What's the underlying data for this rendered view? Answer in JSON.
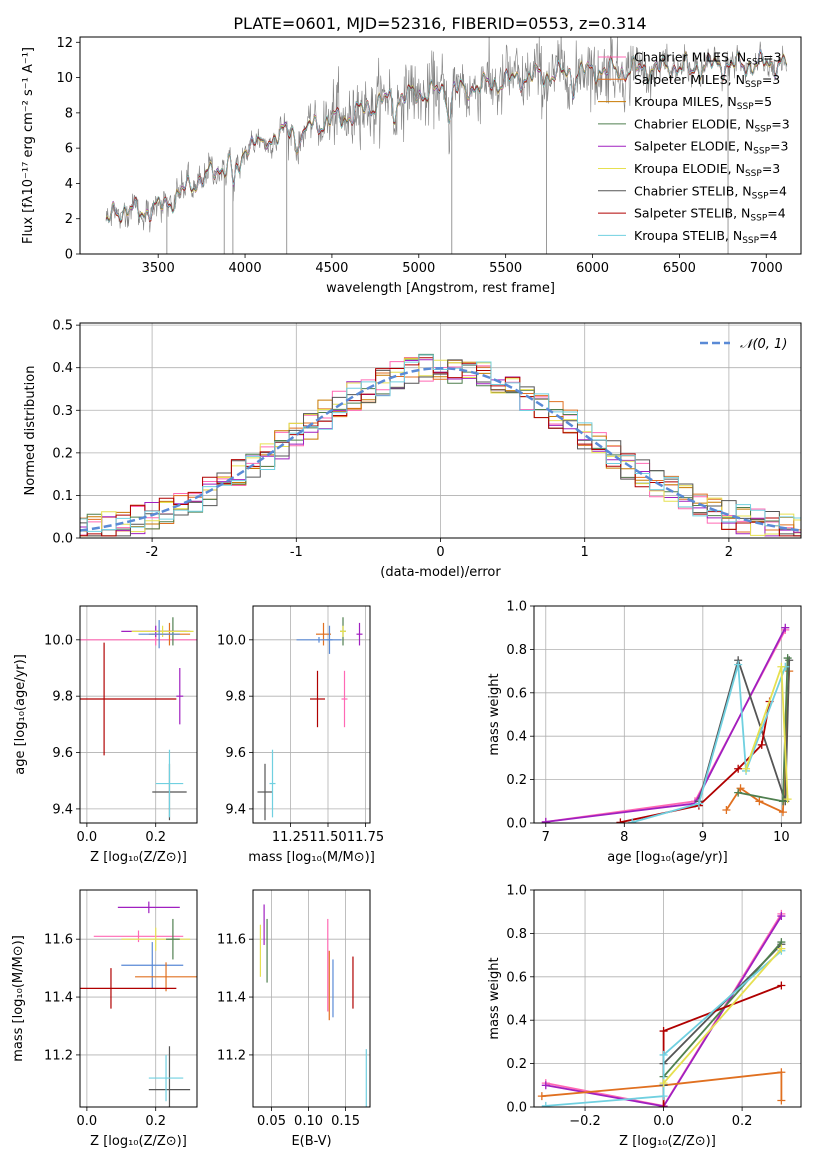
{
  "title": "PLATE=0601, MJD=52316, FIBERID=0553, z=0.314",
  "colors": {
    "Chabrier MILES": "#ff69b4",
    "Salpeter MILES": "#e07020",
    "Kroupa MILES": "#c87800",
    "Chabrier ELODIE": "#4f7f4f",
    "Salpeter ELODIE": "#a020c0",
    "Kroupa ELODIE": "#e6e050",
    "Chabrier STELIB": "#555555",
    "Salpeter STELIB": "#b00000",
    "Kroupa STELIB": "#70d0e0",
    "data": "#808080",
    "gauss": "#5a8ad6"
  },
  "chart_data": [
    {
      "id": "spectrum",
      "type": "line",
      "xlabel": "wavelength [Angstrom, rest frame]",
      "ylabel": "Flux [fλ10⁻¹⁷ erg cm⁻² s⁻¹ A⁻¹]",
      "xlim": [
        3050,
        7200
      ],
      "ylim": [
        0,
        12.3
      ],
      "xticks": [
        3500,
        4000,
        4500,
        5000,
        5500,
        6000,
        6500,
        7000
      ],
      "yticks": [
        0,
        2,
        4,
        6,
        8,
        10,
        12
      ],
      "legend_position": "upper-right",
      "legend": [
        {
          "label": "Chabrier MILES, N",
          "sub": "SSP",
          "suffix": "=3",
          "color": "#ff69b4"
        },
        {
          "label": "Salpeter MILES, N",
          "sub": "SSP",
          "suffix": "=3",
          "color": "#e07020"
        },
        {
          "label": "Kroupa MILES, N",
          "sub": "SSP",
          "suffix": "=5",
          "color": "#c87800"
        },
        {
          "label": "Chabrier ELODIE, N",
          "sub": "SSP",
          "suffix": "=3",
          "color": "#4f7f4f"
        },
        {
          "label": "Salpeter ELODIE, N",
          "sub": "SSP",
          "suffix": "=3",
          "color": "#a020c0"
        },
        {
          "label": "Kroupa ELODIE, N",
          "sub": "SSP",
          "suffix": "=3",
          "color": "#e6e050"
        },
        {
          "label": "Chabrier STELIB, N",
          "sub": "SSP",
          "suffix": "=4",
          "color": "#555555"
        },
        {
          "label": "Salpeter STELIB, N",
          "sub": "SSP",
          "suffix": "=4",
          "color": "#b00000"
        },
        {
          "label": "Kroupa STELIB, N",
          "sub": "SSP",
          "suffix": "=4",
          "color": "#70d0e0"
        }
      ],
      "continuum": [
        [
          3200,
          1.6
        ],
        [
          3250,
          2.5
        ],
        [
          3400,
          2.4
        ],
        [
          3500,
          2.6
        ],
        [
          3600,
          3.2
        ],
        [
          3700,
          4.0
        ],
        [
          3800,
          4.5
        ],
        [
          3880,
          5.0
        ],
        [
          3950,
          5.6
        ],
        [
          4000,
          6.2
        ],
        [
          4100,
          6.4
        ],
        [
          4200,
          6.8
        ],
        [
          4300,
          7.0
        ],
        [
          4400,
          7.3
        ],
        [
          4500,
          7.6
        ],
        [
          4600,
          7.8
        ],
        [
          4700,
          8.3
        ],
        [
          4800,
          8.7
        ],
        [
          4900,
          8.9
        ],
        [
          5000,
          9.1
        ],
        [
          5100,
          9.2
        ],
        [
          5200,
          9.3
        ],
        [
          5300,
          9.5
        ],
        [
          5400,
          9.6
        ],
        [
          5500,
          9.8
        ],
        [
          5600,
          10.0
        ],
        [
          5700,
          10.1
        ],
        [
          5800,
          10.2
        ],
        [
          5900,
          10.3
        ],
        [
          6000,
          10.4
        ],
        [
          6100,
          10.4
        ],
        [
          6200,
          10.4
        ],
        [
          6300,
          10.5
        ],
        [
          6400,
          10.5
        ],
        [
          6500,
          10.6
        ],
        [
          6600,
          10.6
        ],
        [
          6700,
          10.7
        ],
        [
          6800,
          10.7
        ],
        [
          6900,
          10.7
        ],
        [
          7000,
          10.8
        ],
        [
          7100,
          10.8
        ]
      ],
      "absorption_features": [
        [
          3934,
          2.0
        ],
        [
          3969,
          1.6
        ],
        [
          4102,
          0.6
        ],
        [
          4300,
          1.0
        ],
        [
          4340,
          0.6
        ],
        [
          4861,
          0.9
        ],
        [
          5175,
          1.5
        ],
        [
          5270,
          0.5
        ],
        [
          5890,
          0.8
        ],
        [
          6563,
          0.4
        ]
      ],
      "spikes": [
        3550,
        3880,
        3930,
        4240,
        5190,
        5735,
        6780
      ]
    },
    {
      "id": "residuals",
      "type": "histogram",
      "xlabel": "(data-model)/error",
      "ylabel": "Normed distribution",
      "xlim": [
        -2.5,
        2.5
      ],
      "ylim": [
        0,
        0.505
      ],
      "xticks": [
        -2,
        -1,
        0,
        1,
        2
      ],
      "yticks": [
        0.0,
        0.1,
        0.2,
        0.3,
        0.4,
        0.5
      ],
      "bin_width": 0.1,
      "legend": [
        {
          "label": "𝒩(0, 1)",
          "color": "#5a8ad6",
          "style": "dashed"
        }
      ],
      "gaussian": {
        "mean": 0,
        "sigma": 1
      }
    },
    {
      "id": "age_vs_Z",
      "type": "errorbar",
      "xlabel": "Z [log₁₀(Z/Z⊙)]",
      "ylabel": "age  [log₁₀(age/yr)]",
      "xlim": [
        -0.02,
        0.32
      ],
      "ylim": [
        9.35,
        10.12
      ],
      "xticks": [
        0.0,
        0.2
      ],
      "xticklabels": [
        "0.0",
        "0.2"
      ],
      "yticks": [
        9.4,
        9.6,
        9.8,
        10.0
      ],
      "yticklabels": [
        "9.4",
        "9.6",
        "9.8",
        "10.0"
      ],
      "points": [
        {
          "c": "#ff69b4",
          "x": 0.2,
          "xe": 0.22,
          "y": 10.0,
          "ye": 0.02
        },
        {
          "c": "#e07020",
          "x": 0.24,
          "xe": 0.06,
          "y": 10.02,
          "ye": 0.04
        },
        {
          "c": "#4f7f4f",
          "x": 0.25,
          "xe": 0.04,
          "y": 10.03,
          "ye": 0.05
        },
        {
          "c": "#a020c0",
          "x": 0.2,
          "xe": 0.1,
          "y": 10.03,
          "ye": 0.02
        },
        {
          "c": "#e6e050",
          "x": 0.22,
          "xe": 0.09,
          "y": 10.03,
          "ye": 0.02
        },
        {
          "c": "#5a8ad6",
          "x": 0.21,
          "xe": 0.06,
          "y": 10.02,
          "ye": 0.05
        },
        {
          "c": "#b00000",
          "x": 0.05,
          "xe": 0.21,
          "y": 9.79,
          "ye": 0.2
        },
        {
          "c": "#555555",
          "x": 0.24,
          "xe": 0.05,
          "y": 9.46,
          "ye": 0.1
        },
        {
          "c": "#70d0e0",
          "x": 0.24,
          "xe": 0.04,
          "y": 9.49,
          "ye": 0.12
        },
        {
          "c": "#a020c0",
          "x": 0.27,
          "xe": 0.01,
          "y": 9.8,
          "ye": 0.1
        }
      ]
    },
    {
      "id": "age_vs_mass",
      "type": "errorbar",
      "xlabel": "mass [log₁₀(M/M⊙)]",
      "xlim": [
        11.0,
        11.78
      ],
      "ylim": [
        9.35,
        10.12
      ],
      "xticks": [
        11.25,
        11.5,
        11.75
      ],
      "xticklabels": [
        "11.25",
        "11.50",
        "11.75"
      ],
      "yticks": [
        9.4,
        9.6,
        9.8,
        10.0
      ],
      "yticklabels": [
        "9.4",
        "9.6",
        "9.8",
        "10.0"
      ],
      "points": [
        {
          "c": "#ff69b4",
          "x": 11.61,
          "xe": 0.02,
          "y": 9.79,
          "ye": 0.1
        },
        {
          "c": "#e07020",
          "x": 11.47,
          "xe": 0.05,
          "y": 10.02,
          "ye": 0.04
        },
        {
          "c": "#4f7f4f",
          "x": 11.6,
          "xe": 0.02,
          "y": 10.03,
          "ye": 0.05
        },
        {
          "c": "#a020c0",
          "x": 11.71,
          "xe": 0.02,
          "y": 10.02,
          "ye": 0.04
        },
        {
          "c": "#e6e050",
          "x": 11.6,
          "xe": 0.02,
          "y": 10.03,
          "ye": 0.02
        },
        {
          "c": "#5a8ad6",
          "x": 11.51,
          "xe": 0.02,
          "y": 10.0,
          "ye": 0.05
        },
        {
          "c": "#555555",
          "x": 11.08,
          "xe": 0.05,
          "y": 9.46,
          "ye": 0.1
        },
        {
          "c": "#70d0e0",
          "x": 11.13,
          "xe": 0.02,
          "y": 9.49,
          "ye": 0.12
        },
        {
          "c": "#b00000",
          "x": 11.43,
          "xe": 0.05,
          "y": 9.79,
          "ye": 0.1
        },
        {
          "c": "#5a8ad6",
          "x": 11.44,
          "xe": 0.15,
          "y": 10.0,
          "ye": 0.01
        }
      ]
    },
    {
      "id": "mass_weight_vs_age",
      "type": "line",
      "xlabel": "age  [log₁₀(age/yr)]",
      "ylabel": "mass weight",
      "xlim": [
        6.85,
        10.25
      ],
      "ylim": [
        0,
        1.0
      ],
      "xticks": [
        7,
        8,
        9,
        10
      ],
      "xticklabels": [
        "7",
        "8",
        "9",
        "10"
      ],
      "yticks": [
        0.0,
        0.2,
        0.4,
        0.6,
        0.8,
        1.0
      ],
      "yticklabels": [
        "0.0",
        "0.2",
        "0.4",
        "0.6",
        "0.8",
        "1.0"
      ],
      "series": [
        {
          "c": "#ff69b4",
          "x": [
            7.0,
            8.9,
            10.05
          ],
          "y": [
            0.005,
            0.1,
            0.89
          ]
        },
        {
          "c": "#a020c0",
          "x": [
            7.0,
            8.9,
            10.05
          ],
          "y": [
            0.005,
            0.09,
            0.9
          ]
        },
        {
          "c": "#e07020",
          "x": [
            9.3,
            9.48,
            9.72,
            10.02,
            10.1
          ],
          "y": [
            0.06,
            0.16,
            0.1,
            0.05,
            0.7
          ]
        },
        {
          "c": "#555555",
          "x": [
            8.95,
            9.45,
            10.05,
            10.1
          ],
          "y": [
            0.1,
            0.75,
            0.1,
            0.75
          ]
        },
        {
          "c": "#4f7f4f",
          "x": [
            9.45,
            10.02,
            10.08
          ],
          "y": [
            0.14,
            0.1,
            0.76
          ]
        },
        {
          "c": "#b00000",
          "x": [
            7.95,
            8.95,
            9.45,
            9.75,
            9.85
          ],
          "y": [
            0.003,
            0.08,
            0.25,
            0.36,
            0.56
          ]
        },
        {
          "c": "#70d0e0",
          "x": [
            8.1,
            8.95,
            9.45,
            9.55,
            10.05
          ],
          "y": [
            0.003,
            0.09,
            0.73,
            0.24,
            0.72
          ]
        },
        {
          "c": "#e6e050",
          "x": [
            9.55,
            10.0,
            10.08
          ],
          "y": [
            0.25,
            0.72,
            0.11
          ]
        }
      ]
    },
    {
      "id": "mass_vs_Z",
      "type": "errorbar",
      "xlabel": "Z [log₁₀(Z/Z⊙)]",
      "ylabel": "mass [log₁₀(M/M⊙)]",
      "xlim": [
        -0.02,
        0.32
      ],
      "ylim": [
        11.02,
        11.77
      ],
      "xticks": [
        0.0,
        0.2
      ],
      "xticklabels": [
        "0.0",
        "0.2"
      ],
      "yticks": [
        11.2,
        11.4,
        11.6
      ],
      "yticklabels": [
        "11.2",
        "11.4",
        "11.6"
      ],
      "points": [
        {
          "c": "#ff69b4",
          "x": 0.15,
          "xe": 0.13,
          "y": 11.61,
          "ye": 0.02
        },
        {
          "c": "#a020c0",
          "x": 0.18,
          "xe": 0.09,
          "y": 11.71,
          "ye": 0.02
        },
        {
          "c": "#e6e050",
          "x": 0.2,
          "xe": 0.1,
          "y": 11.6,
          "ye": 0.04
        },
        {
          "c": "#4f7f4f",
          "x": 0.25,
          "xe": 0.02,
          "y": 11.6,
          "ye": 0.07
        },
        {
          "c": "#5a8ad6",
          "x": 0.19,
          "xe": 0.09,
          "y": 11.51,
          "ye": 0.08
        },
        {
          "c": "#e07020",
          "x": 0.23,
          "xe": 0.09,
          "y": 11.47,
          "ye": 0.05
        },
        {
          "c": "#b00000",
          "x": 0.07,
          "xe": 0.19,
          "y": 11.43,
          "ye": 0.07
        },
        {
          "c": "#555555",
          "x": 0.24,
          "xe": 0.06,
          "y": 11.08,
          "ye": 0.15
        },
        {
          "c": "#70d0e0",
          "x": 0.23,
          "xe": 0.05,
          "y": 11.12,
          "ye": 0.08
        }
      ]
    },
    {
      "id": "mass_vs_ebv",
      "type": "errorbar",
      "xlabel": "E(B-V)",
      "xlim": [
        0.025,
        0.183
      ],
      "ylim": [
        11.02,
        11.77
      ],
      "xticks": [
        0.05,
        0.1,
        0.15
      ],
      "xticklabels": [
        "0.05",
        "0.10",
        "0.15"
      ],
      "yticks": [
        11.2,
        11.4,
        11.6
      ],
      "yticklabels": [
        "11.2",
        "11.4",
        "11.6"
      ],
      "points": [
        {
          "c": "#a020c0",
          "x": 0.04,
          "xe": 0.0,
          "y": 11.65,
          "ye": 0.07
        },
        {
          "c": "#e6e050",
          "x": 0.035,
          "xe": 0.0,
          "y": 11.56,
          "ye": 0.09
        },
        {
          "c": "#4f7f4f",
          "x": 0.044,
          "xe": 0.0,
          "y": 11.56,
          "ye": 0.11
        },
        {
          "c": "#ff69b4",
          "x": 0.126,
          "xe": 0.0,
          "y": 11.51,
          "ye": 0.16
        },
        {
          "c": "#e07020",
          "x": 0.128,
          "xe": 0.0,
          "y": 11.44,
          "ye": 0.12
        },
        {
          "c": "#5a8ad6",
          "x": 0.133,
          "xe": 0.0,
          "y": 11.43,
          "ye": 0.1
        },
        {
          "c": "#b00000",
          "x": 0.16,
          "xe": 0.0,
          "y": 11.45,
          "ye": 0.09
        },
        {
          "c": "#70d0e0",
          "x": 0.178,
          "xe": 0.0,
          "y": 11.12,
          "ye": 0.1
        }
      ]
    },
    {
      "id": "mass_weight_vs_Z",
      "type": "line",
      "xlabel": "Z [log₁₀(Z/Z⊙)]",
      "ylabel": "mass weight",
      "xlim": [
        -0.33,
        0.35
      ],
      "ylim": [
        0,
        1.0
      ],
      "xticks": [
        -0.2,
        0.0,
        0.2
      ],
      "xticklabels": [
        "−0.2",
        "0.0",
        "0.2"
      ],
      "yticks": [
        0.0,
        0.2,
        0.4,
        0.6,
        0.8,
        1.0
      ],
      "yticklabels": [
        "0.0",
        "0.2",
        "0.4",
        "0.6",
        "0.8",
        "1.0"
      ],
      "series": [
        {
          "c": "#ff69b4",
          "x": [
            -0.3,
            0.0,
            0.3
          ],
          "y": [
            0.11,
            0.005,
            0.89
          ]
        },
        {
          "c": "#a020c0",
          "x": [
            -0.3,
            0.0,
            0.3
          ],
          "y": [
            0.1,
            0.003,
            0.88
          ]
        },
        {
          "c": "#e07020",
          "x": [
            -0.31,
            0.0,
            0.3,
            0.3
          ],
          "y": [
            0.05,
            0.1,
            0.16,
            0.03
          ]
        },
        {
          "c": "#555555",
          "x": [
            0.0,
            0.0,
            0.3
          ],
          "y": [
            0.1,
            0.2,
            0.75
          ]
        },
        {
          "c": "#4f7f4f",
          "x": [
            0.0,
            0.3
          ],
          "y": [
            0.14,
            0.76
          ]
        },
        {
          "c": "#b00000",
          "x": [
            0.0,
            0.0,
            0.3
          ],
          "y": [
            0.0,
            0.35,
            0.56
          ]
        },
        {
          "c": "#70d0e0",
          "x": [
            -0.3,
            0.0,
            0.0,
            0.3
          ],
          "y": [
            0.005,
            0.05,
            0.24,
            0.72
          ]
        },
        {
          "c": "#e6e050",
          "x": [
            0.0,
            0.3
          ],
          "y": [
            0.11,
            0.73
          ]
        }
      ]
    }
  ]
}
